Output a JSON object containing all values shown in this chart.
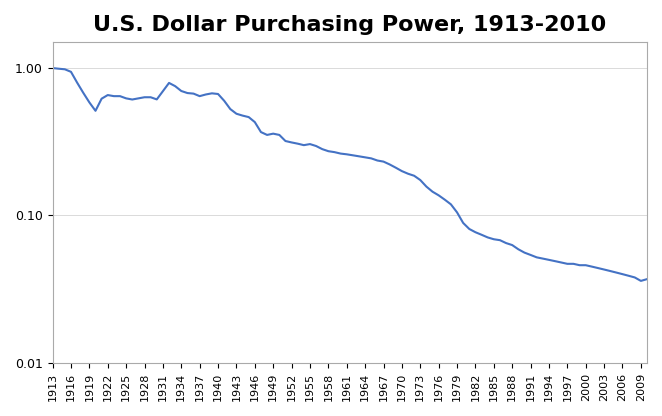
{
  "title": "U.S. Dollar Purchasing Power, 1913-2010",
  "title_fontsize": 16,
  "line_color": "#4472C4",
  "line_width": 1.5,
  "background_color": "#ffffff",
  "ylim": [
    0.01,
    1.5
  ],
  "years": [
    1913,
    1914,
    1915,
    1916,
    1917,
    1918,
    1919,
    1920,
    1921,
    1922,
    1923,
    1924,
    1925,
    1926,
    1927,
    1928,
    1929,
    1930,
    1931,
    1932,
    1933,
    1934,
    1935,
    1936,
    1937,
    1938,
    1939,
    1940,
    1941,
    1942,
    1943,
    1944,
    1945,
    1946,
    1947,
    1948,
    1949,
    1950,
    1951,
    1952,
    1953,
    1954,
    1955,
    1956,
    1957,
    1958,
    1959,
    1960,
    1961,
    1962,
    1963,
    1964,
    1965,
    1966,
    1967,
    1968,
    1969,
    1970,
    1971,
    1972,
    1973,
    1974,
    1975,
    1976,
    1977,
    1978,
    1979,
    1980,
    1981,
    1982,
    1983,
    1984,
    1985,
    1986,
    1987,
    1988,
    1989,
    1990,
    1991,
    1992,
    1993,
    1994,
    1995,
    1996,
    1997,
    1998,
    1999,
    2000,
    2001,
    2002,
    2003,
    2004,
    2005,
    2006,
    2007,
    2008,
    2009,
    2010
  ],
  "values": [
    1.0,
    0.99,
    0.981,
    0.943,
    0.797,
    0.68,
    0.585,
    0.513,
    0.62,
    0.656,
    0.645,
    0.645,
    0.623,
    0.612,
    0.623,
    0.634,
    0.634,
    0.613,
    0.697,
    0.793,
    0.754,
    0.699,
    0.677,
    0.671,
    0.645,
    0.662,
    0.674,
    0.667,
    0.6,
    0.527,
    0.49,
    0.476,
    0.465,
    0.43,
    0.368,
    0.352,
    0.359,
    0.352,
    0.32,
    0.313,
    0.307,
    0.3,
    0.305,
    0.296,
    0.282,
    0.273,
    0.269,
    0.263,
    0.26,
    0.256,
    0.252,
    0.248,
    0.244,
    0.236,
    0.232,
    0.222,
    0.211,
    0.2,
    0.192,
    0.186,
    0.174,
    0.157,
    0.145,
    0.137,
    0.128,
    0.119,
    0.105,
    0.089,
    0.081,
    0.077,
    0.074,
    0.071,
    0.069,
    0.068,
    0.065,
    0.063,
    0.059,
    0.056,
    0.054,
    0.052,
    0.051,
    0.05,
    0.049,
    0.048,
    0.047,
    0.047,
    0.046,
    0.046,
    0.045,
    0.044,
    0.043,
    0.042,
    0.041,
    0.04,
    0.039,
    0.038,
    0.036,
    0.037
  ]
}
